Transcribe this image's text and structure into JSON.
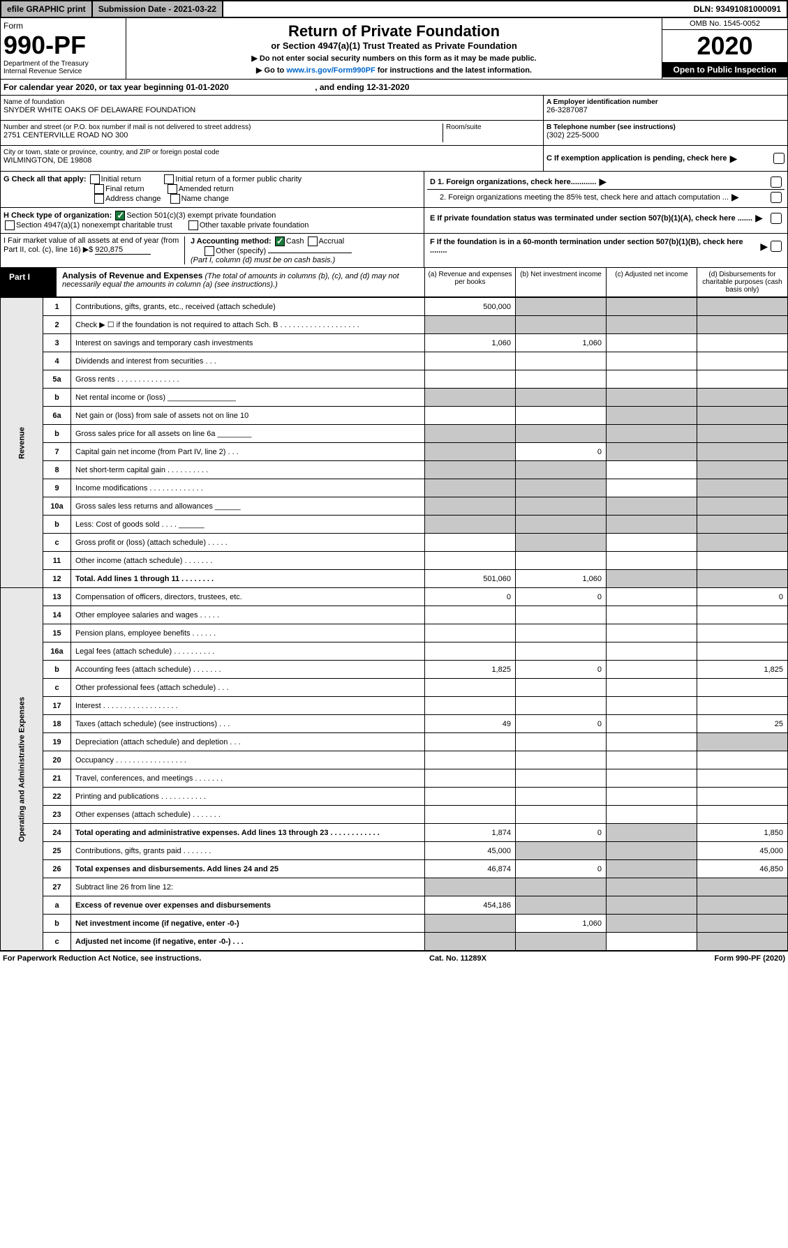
{
  "top": {
    "efile": "efile GRAPHIC print",
    "submission": "Submission Date - 2021-03-22",
    "dln": "DLN: 93491081000091"
  },
  "header": {
    "form_label": "Form",
    "form_number": "990-PF",
    "dept1": "Department of the Treasury",
    "dept2": "Internal Revenue Service",
    "title": "Return of Private Foundation",
    "subtitle": "or Section 4947(a)(1) Trust Treated as Private Foundation",
    "instr1": "▶ Do not enter social security numbers on this form as it may be made public.",
    "instr2_pre": "▶ Go to ",
    "instr2_link": "www.irs.gov/Form990PF",
    "instr2_post": " for instructions and the latest information.",
    "omb": "OMB No. 1545-0052",
    "year": "2020",
    "open": "Open to Public Inspection"
  },
  "cal_year": {
    "text_pre": "For calendar year 2020, or tax year beginning ",
    "begin": "01-01-2020",
    "text_mid": " , and ending ",
    "end": "12-31-2020"
  },
  "info": {
    "name_label": "Name of foundation",
    "name": "SNYDER WHITE OAKS OF DELAWARE FOUNDATION",
    "addr_label": "Number and street (or P.O. box number if mail is not delivered to street address)",
    "addr": "2751 CENTERVILLE ROAD NO 300",
    "room_label": "Room/suite",
    "room": "",
    "city_label": "City or town, state or province, country, and ZIP or foreign postal code",
    "city": "WILMINGTON, DE  19808",
    "ein_label": "A Employer identification number",
    "ein": "26-3287087",
    "phone_label": "B Telephone number (see instructions)",
    "phone": "(302) 225-5000",
    "c_label": "C If exemption application is pending, check here"
  },
  "checks": {
    "g_label": "G Check all that apply:",
    "g_initial": "Initial return",
    "g_initial_former": "Initial return of a former public charity",
    "g_final": "Final return",
    "g_amended": "Amended return",
    "g_addr": "Address change",
    "g_name": "Name change",
    "h_label": "H Check type of organization:",
    "h_501c3": "Section 501(c)(3) exempt private foundation",
    "h_4947": "Section 4947(a)(1) nonexempt charitable trust",
    "h_other": "Other taxable private foundation",
    "i_label": "I Fair market value of all assets at end of year (from Part II, col. (c), line 16) ▶$",
    "i_value": "920,875",
    "j_label": "J Accounting method:",
    "j_cash": "Cash",
    "j_accrual": "Accrual",
    "j_other": "Other (specify)",
    "j_note": "(Part I, column (d) must be on cash basis.)",
    "d1": "D 1. Foreign organizations, check here............",
    "d2": "2. Foreign organizations meeting the 85% test, check here and attach computation ...",
    "e_label": "E  If private foundation status was terminated under section 507(b)(1)(A), check here .......",
    "f_label": "F  If the foundation is in a 60-month termination under section 507(b)(1)(B), check here ........"
  },
  "part1": {
    "label": "Part I",
    "title": "Analysis of Revenue and Expenses",
    "note": "(The total of amounts in columns (b), (c), and (d) may not necessarily equal the amounts in column (a) (see instructions).)",
    "col_a": "(a) Revenue and expenses per books",
    "col_b": "(b) Net investment income",
    "col_c": "(c) Adjusted net income",
    "col_d": "(d) Disbursements for charitable purposes (cash basis only)"
  },
  "side_labels": {
    "revenue": "Revenue",
    "expenses": "Operating and Administrative Expenses"
  },
  "rows": {
    "r1": {
      "num": "1",
      "desc": "Contributions, gifts, grants, etc., received (attach schedule)",
      "a": "500,000"
    },
    "r2": {
      "num": "2",
      "desc": "Check ▶ ☐ if the foundation is not required to attach Sch. B  . . . . . . . . . . . . . . . . . . ."
    },
    "r3": {
      "num": "3",
      "desc": "Interest on savings and temporary cash investments",
      "a": "1,060",
      "b": "1,060"
    },
    "r4": {
      "num": "4",
      "desc": "Dividends and interest from securities   .   .   ."
    },
    "r5a": {
      "num": "5a",
      "desc": "Gross rents   . . . . . . . . . . . . . . ."
    },
    "r5b": {
      "num": "b",
      "desc": "Net rental income or (loss) ________________"
    },
    "r6a": {
      "num": "6a",
      "desc": "Net gain or (loss) from sale of assets not on line 10"
    },
    "r6b": {
      "num": "b",
      "desc": "Gross sales price for all assets on line 6a ________"
    },
    "r7": {
      "num": "7",
      "desc": "Capital gain net income (from Part IV, line 2)   .   .   .",
      "b": "0"
    },
    "r8": {
      "num": "8",
      "desc": "Net short-term capital gain  . . . . . . . . . ."
    },
    "r9": {
      "num": "9",
      "desc": "Income modifications  . . . . . . . . . . . . ."
    },
    "r10a": {
      "num": "10a",
      "desc": "Gross sales less returns and allowances ______"
    },
    "r10b": {
      "num": "b",
      "desc": "Less: Cost of goods sold   .   .   .   .   ______"
    },
    "r10c": {
      "num": "c",
      "desc": "Gross profit or (loss) (attach schedule)   .   .   .   .   ."
    },
    "r11": {
      "num": "11",
      "desc": "Other income (attach schedule)   .   .   .   .   .   .   ."
    },
    "r12": {
      "num": "12",
      "desc": "Total. Add lines 1 through 11   .   .   .   .   .   .   .   .",
      "a": "501,060",
      "b": "1,060",
      "bold": true
    },
    "r13": {
      "num": "13",
      "desc": "Compensation of officers, directors, trustees, etc.",
      "a": "0",
      "b": "0",
      "d": "0"
    },
    "r14": {
      "num": "14",
      "desc": "Other employee salaries and wages   .   .   .   .   ."
    },
    "r15": {
      "num": "15",
      "desc": "Pension plans, employee benefits   .   .   .   .   .   ."
    },
    "r16a": {
      "num": "16a",
      "desc": "Legal fees (attach schedule)  . . . . . . . . . ."
    },
    "r16b": {
      "num": "b",
      "desc": "Accounting fees (attach schedule)  . . . . . . .",
      "a": "1,825",
      "b": "0",
      "d": "1,825"
    },
    "r16c": {
      "num": "c",
      "desc": "Other professional fees (attach schedule)   .   .   ."
    },
    "r17": {
      "num": "17",
      "desc": "Interest  . . . . . . . . . . . . . . . . . ."
    },
    "r18": {
      "num": "18",
      "desc": "Taxes (attach schedule) (see instructions)   .   .   .",
      "a": "49",
      "b": "0",
      "d": "25"
    },
    "r19": {
      "num": "19",
      "desc": "Depreciation (attach schedule) and depletion   .   .   ."
    },
    "r20": {
      "num": "20",
      "desc": "Occupancy  . . . . . . . . . . . . . . . . ."
    },
    "r21": {
      "num": "21",
      "desc": "Travel, conferences, and meetings  . . . . . . ."
    },
    "r22": {
      "num": "22",
      "desc": "Printing and publications  . . . . . . . . . . ."
    },
    "r23": {
      "num": "23",
      "desc": "Other expenses (attach schedule)  . . . . . . ."
    },
    "r24": {
      "num": "24",
      "desc": "Total operating and administrative expenses. Add lines 13 through 23  . . . . . . . . . . . .",
      "a": "1,874",
      "b": "0",
      "d": "1,850",
      "bold": true
    },
    "r25": {
      "num": "25",
      "desc": "Contributions, gifts, grants paid   .   .   .   .   .   .   .",
      "a": "45,000",
      "d": "45,000"
    },
    "r26": {
      "num": "26",
      "desc": "Total expenses and disbursements. Add lines 24 and 25",
      "a": "46,874",
      "b": "0",
      "d": "46,850",
      "bold": true
    },
    "r27": {
      "num": "27",
      "desc": "Subtract line 26 from line 12:"
    },
    "r27a": {
      "num": "a",
      "desc": "Excess of revenue over expenses and disbursements",
      "a": "454,186",
      "bold": true
    },
    "r27b": {
      "num": "b",
      "desc": "Net investment income (if negative, enter -0-)",
      "b": "1,060",
      "bold": true
    },
    "r27c": {
      "num": "c",
      "desc": "Adjusted net income (if negative, enter -0-)   .   .   .",
      "bold": true
    }
  },
  "footer": {
    "left": "For Paperwork Reduction Act Notice, see instructions.",
    "center": "Cat. No. 11289X",
    "right": "Form 990-PF (2020)"
  }
}
